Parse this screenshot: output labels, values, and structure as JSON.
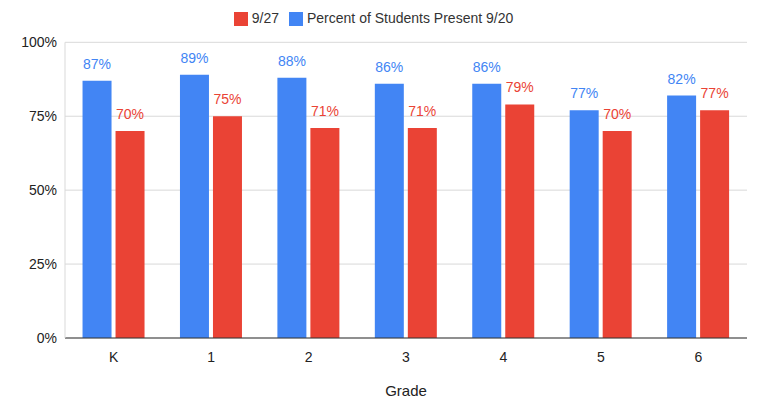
{
  "chart_data": {
    "type": "bar",
    "x_label": "Grade",
    "categories": [
      "K",
      "1",
      "2",
      "3",
      "4",
      "5",
      "6"
    ],
    "series": [
      {
        "name": "Percent of Students Present 9/20",
        "color": "#4285f4",
        "values": [
          87,
          89,
          88,
          86,
          86,
          77,
          82
        ],
        "value_labels": [
          "87%",
          "89%",
          "88%",
          "86%",
          "86%",
          "77%",
          "82%"
        ]
      },
      {
        "name": "9/27",
        "color": "#ea4335",
        "values": [
          70,
          75,
          71,
          71,
          79,
          70,
          77
        ],
        "value_labels": [
          "70%",
          "75%",
          "71%",
          "71%",
          "79%",
          "70%",
          "77%"
        ]
      }
    ],
    "ylim": [
      0,
      100
    ],
    "yticks": [
      {
        "value": 0,
        "label": "0%"
      },
      {
        "value": 25,
        "label": "25%"
      },
      {
        "value": 50,
        "label": "50%"
      },
      {
        "value": 75,
        "label": "75%"
      },
      {
        "value": 100,
        "label": "100%"
      }
    ],
    "grid": true,
    "legend": "top",
    "data_labels": true
  }
}
